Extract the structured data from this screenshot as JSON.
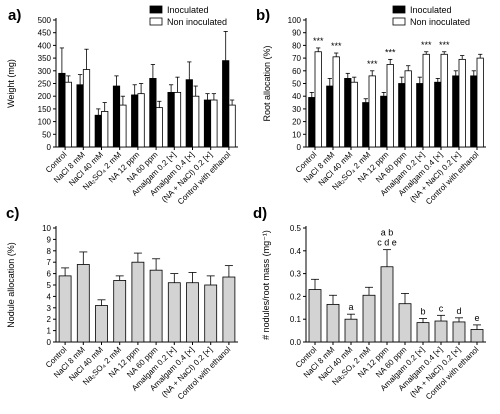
{
  "chart_data": [
    {
      "panel": "a)",
      "type": "bar",
      "categories": [
        "Control",
        "NaCl 8 mM",
        "NaCl 40 mM",
        "Na₂SO₄ 2 mM",
        "NA 12 ppm",
        "NA 60 ppm",
        "Amalgam 0.2 [×]",
        "Amalgam 0.4 [×]",
        "(NA + NaCl) 0.2 [×]",
        "Control with ethanol"
      ],
      "series": [
        {
          "name": "Inoculated",
          "values": [
            290,
            245,
            125,
            240,
            205,
            270,
            215,
            265,
            185,
            340
          ],
          "errors": [
            100,
            40,
            25,
            40,
            40,
            55,
            30,
            70,
            25,
            115
          ]
        },
        {
          "name": "Non inoculated",
          "values": [
            255,
            305,
            140,
            165,
            210,
            155,
            215,
            200,
            185,
            165
          ],
          "errors": [
            25,
            80,
            35,
            35,
            40,
            25,
            60,
            40,
            25,
            20
          ]
        }
      ],
      "xlabel": "",
      "ylabel": "Weight (mg)",
      "ylim": [
        0,
        500
      ],
      "yticks": [
        0,
        50,
        100,
        150,
        200,
        250,
        300,
        350,
        400,
        450,
        500
      ],
      "legend": "top-right",
      "colors": [
        "#000000",
        "#ffffff"
      ]
    },
    {
      "panel": "b)",
      "type": "bar",
      "categories": [
        "Control",
        "NaCl 8 mM",
        "NaCl 40 mM",
        "Na₂SO₄ 2 mM",
        "NA 12 ppm",
        "NA 60 ppm",
        "Amalgam 0.2 [×]",
        "Amalgam 0.4 [×]",
        "(NA + NaCl) 0.2 [×]",
        "Control with ethanol"
      ],
      "series": [
        {
          "name": "Inoculated",
          "values": [
            39,
            48,
            54,
            35,
            40,
            50,
            50,
            51,
            56,
            56
          ],
          "errors": [
            4,
            6,
            4,
            3,
            3,
            5,
            5,
            3,
            4,
            4
          ]
        },
        {
          "name": "Non inoculated",
          "values": [
            75,
            71,
            51,
            56,
            65,
            60,
            73,
            73,
            69,
            70
          ],
          "errors": [
            3,
            3,
            4,
            4,
            4,
            4,
            2,
            2,
            3,
            3
          ]
        }
      ],
      "annotations": [
        "***",
        "***",
        "",
        "***",
        "***",
        "",
        "***",
        "***",
        "",
        ""
      ],
      "xlabel": "",
      "ylabel": "Root allocation (%)",
      "ylim": [
        0,
        100
      ],
      "yticks": [
        0,
        10,
        20,
        30,
        40,
        50,
        60,
        70,
        80,
        90,
        100
      ],
      "legend": "top-right",
      "colors": [
        "#000000",
        "#ffffff"
      ]
    },
    {
      "panel": "c)",
      "type": "bar",
      "categories": [
        "Control",
        "NaCl 8 mM",
        "NaCl 40 mM",
        "Na₂SO₄ 2 mM",
        "NA 12 ppm",
        "NA 60 ppm",
        "Amalgam 0.2 [×]",
        "Amalgam 0.4 [×]",
        "(NA + NaCl) 0.2 [×]",
        "Control with ethanol"
      ],
      "series": [
        {
          "values": [
            5.8,
            6.8,
            3.2,
            5.4,
            7.0,
            6.3,
            5.2,
            5.2,
            5.0,
            5.7
          ],
          "errors": [
            0.7,
            1.1,
            0.5,
            0.4,
            0.8,
            1.0,
            0.8,
            0.9,
            0.8,
            1.0
          ]
        }
      ],
      "xlabel": "",
      "ylabel": "Nodule allocation (%)",
      "ylim": [
        0,
        10
      ],
      "yticks": [
        0,
        1,
        2,
        3,
        4,
        5,
        6,
        7,
        8,
        9,
        10
      ],
      "colors": [
        "#d3d3d3"
      ]
    },
    {
      "panel": "d)",
      "type": "bar",
      "categories": [
        "Control",
        "NaCl 8 mM",
        "NaCl 40 mM",
        "Na₂SO₄ 2 mM",
        "NA 12 ppm",
        "NA 60 ppm",
        "Amalgam 0.2 [×]",
        "Amalgam 0.4 [×]",
        "(NA + NaCl) 0.2 [×]",
        "Control with ethanol"
      ],
      "series": [
        {
          "values": [
            0.23,
            0.165,
            0.1,
            0.205,
            0.33,
            0.168,
            0.085,
            0.092,
            0.088,
            0.055
          ],
          "errors": [
            0.045,
            0.04,
            0.022,
            0.035,
            0.075,
            0.045,
            0.018,
            0.025,
            0.018,
            0.02
          ]
        }
      ],
      "annotations": [
        "",
        "",
        "a",
        "",
        "a b\nc d e",
        "",
        "b",
        "c",
        "d",
        "e"
      ],
      "xlabel": "",
      "ylabel": "# nodules/root mass (mg⁻¹)",
      "ylim": [
        0,
        0.5
      ],
      "yticks": [
        0.0,
        0.1,
        0.2,
        0.3,
        0.4,
        0.5
      ],
      "colors": [
        "#d3d3d3"
      ]
    }
  ]
}
